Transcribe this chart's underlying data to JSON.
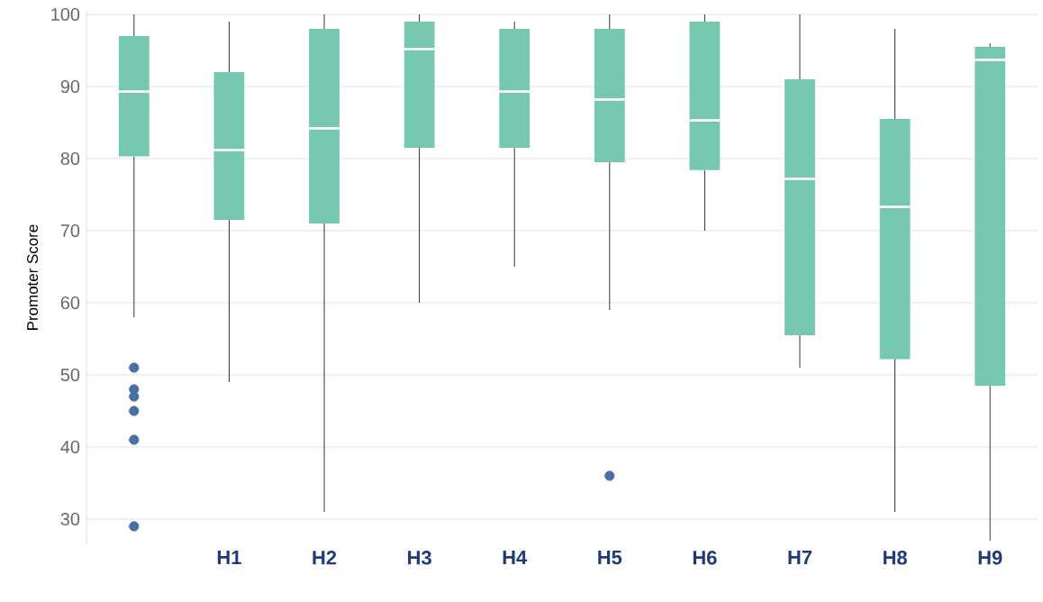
{
  "chart_data": {
    "type": "box",
    "ylabel": "Promoter Score",
    "categories": [
      null,
      "H1",
      "H2",
      "H3",
      "H4",
      "H5",
      "H6",
      "H7",
      "H8",
      "H9"
    ],
    "color": "#76c8b1",
    "boxes": [
      {
        "low": 58,
        "q1": 80.3,
        "median": 89.3,
        "q3": 97,
        "high": 100,
        "outliers": [
          51,
          48,
          47,
          45,
          41,
          29
        ]
      },
      {
        "low": 49,
        "q1": 71.5,
        "median": 81.2,
        "q3": 92,
        "high": 99
      },
      {
        "low": 31,
        "q1": 71,
        "median": 84.2,
        "q3": 98,
        "high": 100
      },
      {
        "low": 60,
        "q1": 81.5,
        "median": 95.2,
        "q3": 99,
        "high": 100
      },
      {
        "low": 65,
        "q1": 81.5,
        "median": 89.3,
        "q3": 98,
        "high": 99
      },
      {
        "low": 59,
        "q1": 79.5,
        "median": 88.2,
        "q3": 98,
        "high": 100,
        "outliers": [
          36
        ]
      },
      {
        "low": 70,
        "q1": 78.4,
        "median": 85.3,
        "q3": 99,
        "high": 100
      },
      {
        "low": 51,
        "q1": 55.5,
        "median": 77.2,
        "q3": 91,
        "high": 100
      },
      {
        "low": 31,
        "q1": 52.2,
        "median": 73.3,
        "q3": 85.5,
        "high": 98
      },
      {
        "low": 27,
        "q1": 48.5,
        "median": 93.7,
        "q3": 95.5,
        "high": 96
      }
    ],
    "ylim": [
      26.5,
      100.5
    ],
    "yticks": [
      30,
      40,
      50,
      60,
      70,
      80,
      90,
      100
    ],
    "grid": "y"
  }
}
